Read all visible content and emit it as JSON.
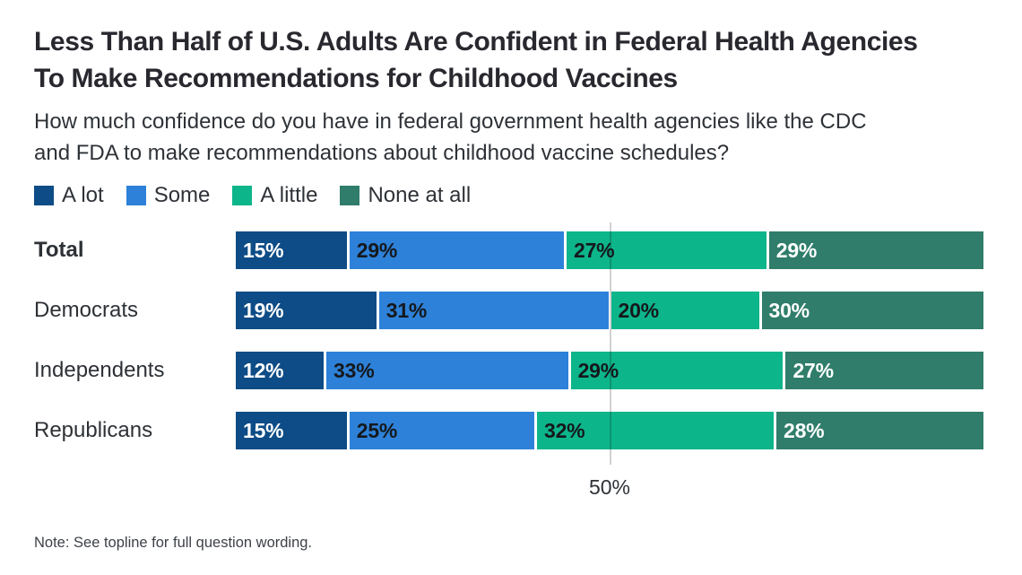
{
  "header": {
    "title_lines": [
      "Less Than Half of U.S. Adults Are Confident in Federal Health Agencies",
      "To Make Recommendations for Childhood Vaccines"
    ],
    "subtitle_lines": [
      "How much confidence do you have in federal government health agencies like the CDC",
      "and FDA to make recommendations about childhood vaccine schedules?"
    ]
  },
  "chart_data": {
    "type": "bar",
    "orientation": "horizontal",
    "stacked": true,
    "legend_position": "top",
    "categories": [
      "Total",
      "Democrats",
      "Independents",
      "Republicans"
    ],
    "bold_categories": [
      "Total"
    ],
    "series": [
      {
        "name": "A lot",
        "color": "#0d4c86",
        "label_color": "#ffffff",
        "values": [
          15,
          19,
          12,
          15
        ]
      },
      {
        "name": "Some",
        "color": "#2d81d8",
        "label_color": "#15181c",
        "values": [
          29,
          31,
          33,
          25
        ]
      },
      {
        "name": "A little",
        "color": "#0db58b",
        "label_color": "#15181c",
        "values": [
          27,
          20,
          29,
          32
        ]
      },
      {
        "name": "None at all",
        "color": "#2f7d6a",
        "label_color": "#ffffff",
        "values": [
          29,
          30,
          27,
          28
        ]
      }
    ],
    "value_suffix": "%",
    "xlim": [
      0,
      100
    ],
    "gridline": {
      "value": 50,
      "label": "50%"
    }
  },
  "note": "Note: See topline for full question wording."
}
